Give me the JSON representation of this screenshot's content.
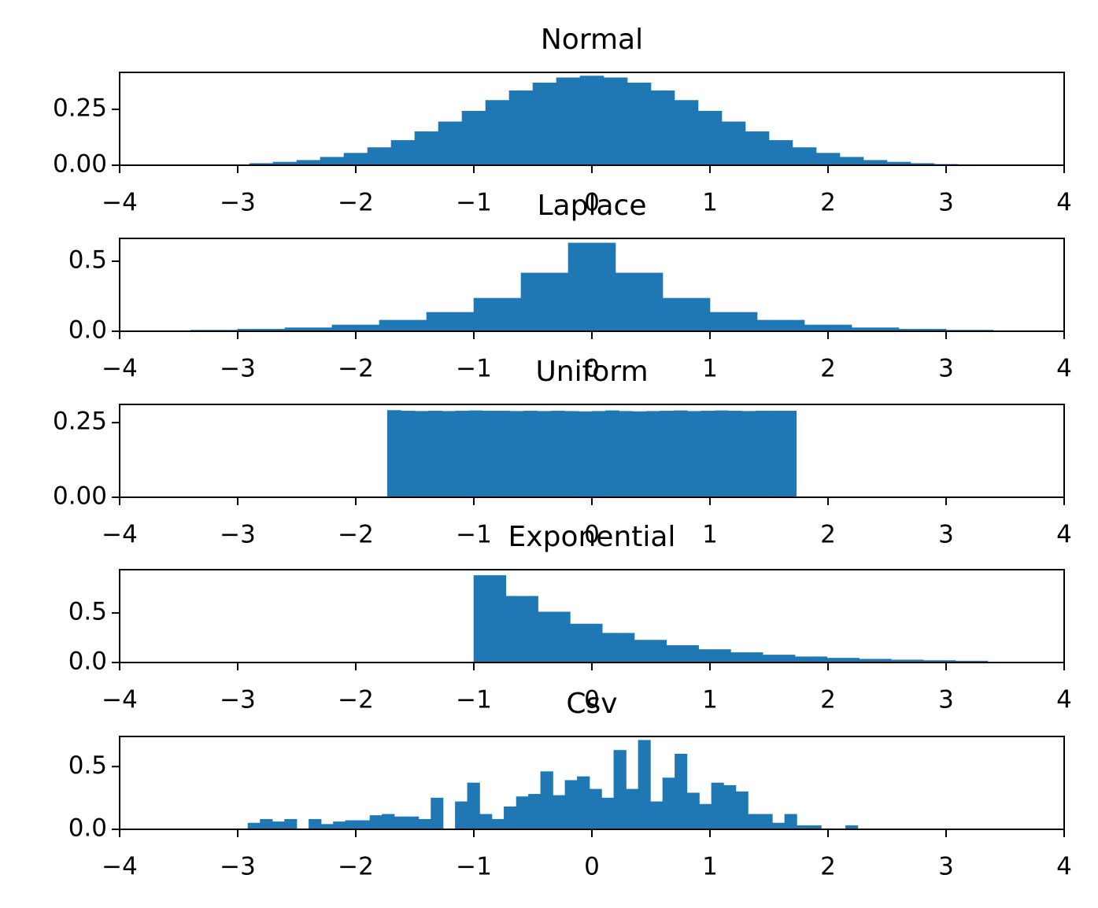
{
  "chart_data": [
    {
      "type": "histogram",
      "title": "Normal",
      "color": "#1f77b4",
      "bins": [
        -2.9,
        -2.7,
        -2.5,
        -2.3,
        -2.1,
        -1.9,
        -1.7,
        -1.5,
        -1.3,
        -1.1,
        -0.9,
        -0.7,
        -0.5,
        -0.3,
        -0.1,
        0.1,
        0.3,
        0.5,
        0.7,
        0.9,
        1.1,
        1.3,
        1.5,
        1.7,
        1.9,
        2.1,
        2.3,
        2.5,
        2.7,
        2.9,
        3.1
      ],
      "values": [
        0.008,
        0.014,
        0.022,
        0.036,
        0.054,
        0.079,
        0.111,
        0.15,
        0.194,
        0.242,
        0.29,
        0.333,
        0.368,
        0.391,
        0.399,
        0.391,
        0.368,
        0.333,
        0.29,
        0.242,
        0.194,
        0.15,
        0.111,
        0.079,
        0.054,
        0.036,
        0.022,
        0.014,
        0.008,
        0.004
      ],
      "xlim": [
        -4,
        4
      ],
      "ylim": [
        0,
        0.415
      ],
      "xticks": [
        {
          "value": -4,
          "label": "−4"
        },
        {
          "value": -3,
          "label": "−3"
        },
        {
          "value": -2,
          "label": "−2"
        },
        {
          "value": -1,
          "label": "−1"
        },
        0,
        1,
        2,
        3,
        4
      ],
      "yticks": [
        {
          "value": 0,
          "label": "0.00"
        },
        0.25
      ]
    },
    {
      "type": "histogram",
      "title": "Laplace",
      "color": "#1f77b4",
      "bins": [
        -3.4,
        -3.0,
        -2.6,
        -2.2,
        -1.8,
        -1.4,
        -1.0,
        -0.6,
        -0.2,
        0.2,
        0.6,
        1.0,
        1.4,
        1.8,
        2.2,
        2.6,
        3.0,
        3.4
      ],
      "values": [
        0.008,
        0.015,
        0.025,
        0.045,
        0.079,
        0.135,
        0.236,
        0.416,
        0.63,
        0.416,
        0.236,
        0.135,
        0.079,
        0.045,
        0.025,
        0.015,
        0.008
      ],
      "xlim": [
        -4,
        4
      ],
      "ylim": [
        0,
        0.663
      ],
      "xticks": [
        {
          "value": -4,
          "label": "−4"
        },
        {
          "value": -3,
          "label": "−3"
        },
        {
          "value": -2,
          "label": "−2"
        },
        {
          "value": -1,
          "label": "−1"
        },
        0,
        1,
        2,
        3,
        4
      ],
      "yticks": [
        {
          "value": 0,
          "label": "0.0"
        },
        0.5
      ]
    },
    {
      "type": "histogram",
      "title": "Uniform",
      "color": "#1f77b4",
      "bins": [
        -1.732,
        -1.617,
        -1.501,
        -1.386,
        -1.27,
        -1.155,
        -1.039,
        -0.924,
        -0.808,
        -0.693,
        -0.577,
        -0.462,
        -0.346,
        -0.231,
        -0.115,
        0,
        0.115,
        0.231,
        0.346,
        0.462,
        0.577,
        0.693,
        0.808,
        0.924,
        1.039,
        1.155,
        1.27,
        1.386,
        1.501,
        1.617,
        1.732
      ],
      "values": [
        0.291,
        0.289,
        0.288,
        0.289,
        0.288,
        0.289,
        0.29,
        0.289,
        0.289,
        0.288,
        0.289,
        0.288,
        0.289,
        0.288,
        0.287,
        0.288,
        0.29,
        0.288,
        0.287,
        0.288,
        0.289,
        0.29,
        0.288,
        0.289,
        0.29,
        0.289,
        0.288,
        0.289,
        0.289,
        0.289
      ],
      "xlim": [
        -4,
        4
      ],
      "ylim": [
        0,
        0.311
      ],
      "xticks": [
        {
          "value": -4,
          "label": "−4"
        },
        {
          "value": -3,
          "label": "−3"
        },
        {
          "value": -2,
          "label": "−2"
        },
        {
          "value": -1,
          "label": "−1"
        },
        0,
        1,
        2,
        3,
        4
      ],
      "yticks": [
        {
          "value": 0,
          "label": "0.00"
        },
        0.25
      ]
    },
    {
      "type": "histogram",
      "title": "Exponential",
      "color": "#1f77b4",
      "bins": [
        -1,
        -0.728,
        -0.456,
        -0.184,
        0.088,
        0.36,
        0.632,
        0.904,
        1.176,
        1.448,
        1.72,
        1.992,
        2.264,
        2.536,
        2.808,
        3.08,
        3.352
      ],
      "values": [
        0.878,
        0.669,
        0.51,
        0.389,
        0.296,
        0.226,
        0.172,
        0.131,
        0.1,
        0.076,
        0.058,
        0.044,
        0.034,
        0.026,
        0.02,
        0.015
      ],
      "xlim": [
        -4,
        4
      ],
      "ylim": [
        0,
        0.937
      ],
      "xticks": [
        {
          "value": -4,
          "label": "−4"
        },
        {
          "value": -3,
          "label": "−3"
        },
        {
          "value": -2,
          "label": "−2"
        },
        {
          "value": -1,
          "label": "−1"
        },
        0,
        1,
        2,
        3,
        4
      ],
      "yticks": [
        {
          "value": 0,
          "label": "0.0"
        },
        0.5
      ]
    },
    {
      "type": "histogram",
      "title": "Csv",
      "color": "#1f77b4",
      "bins": [
        -2.913,
        -2.81,
        -2.706,
        -2.603,
        -2.5,
        -2.397,
        -2.293,
        -2.19,
        -2.087,
        -1.983,
        -1.88,
        -1.777,
        -1.673,
        -1.57,
        -1.467,
        -1.363,
        -1.26,
        -1.157,
        -1.054,
        -0.95,
        -0.847,
        -0.744,
        -0.64,
        -0.537,
        -0.434,
        -0.33,
        -0.227,
        -0.124,
        -0.02,
        0.083,
        0.186,
        0.29,
        0.393,
        0.496,
        0.6,
        0.703,
        0.806,
        0.91,
        1.013,
        1.116,
        1.22,
        1.323,
        1.426,
        1.529,
        1.633,
        1.736,
        1.839,
        1.943,
        2.046,
        2.149,
        2.253
      ],
      "values": [
        0.05,
        0.08,
        0.06,
        0.08,
        0,
        0.08,
        0.04,
        0.06,
        0.07,
        0.07,
        0.11,
        0.12,
        0.1,
        0.1,
        0.08,
        0.25,
        0,
        0.22,
        0.37,
        0.12,
        0.08,
        0.18,
        0.26,
        0.28,
        0.46,
        0.27,
        0.39,
        0.42,
        0.32,
        0.25,
        0.63,
        0.32,
        0.71,
        0.22,
        0.41,
        0.6,
        0.29,
        0.2,
        0.37,
        0.35,
        0.3,
        0.12,
        0.12,
        0.05,
        0.12,
        0.03,
        0.03,
        0.005,
        0,
        0.03
      ],
      "xlim": [
        -4,
        4
      ],
      "ylim": [
        0,
        0.74
      ],
      "xticks": [
        {
          "value": -4,
          "label": "−4"
        },
        {
          "value": -3,
          "label": "−3"
        },
        {
          "value": -2,
          "label": "−2"
        },
        {
          "value": -1,
          "label": "−1"
        },
        0,
        1,
        2,
        3,
        4
      ],
      "yticks": [
        {
          "value": 0,
          "label": "0.0"
        },
        0.5
      ]
    }
  ]
}
